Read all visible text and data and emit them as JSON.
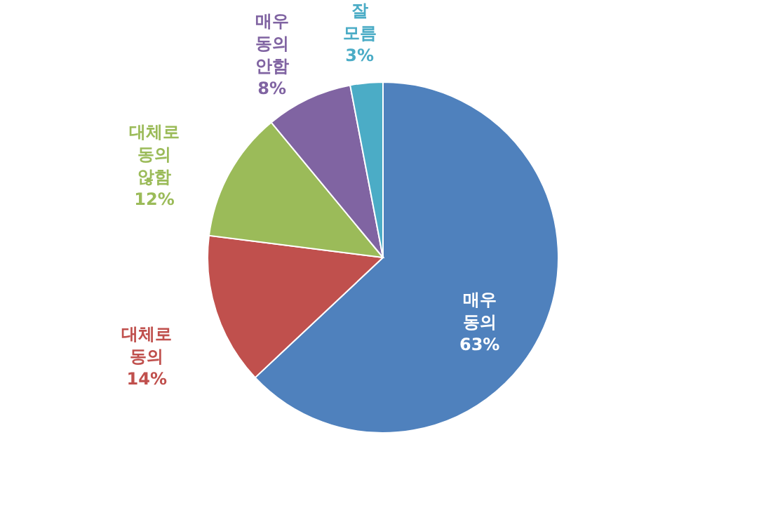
{
  "chart_data": {
    "type": "pie",
    "categories": [
      "매우 동의",
      "대체로 동의",
      "대체로 동의 않함",
      "매우 동의 안함",
      "잘 모름"
    ],
    "values": [
      63,
      14,
      12,
      8,
      3
    ],
    "colors": [
      "#4f81bd",
      "#c0504d",
      "#9bbb59",
      "#8064a2",
      "#4bacc6"
    ],
    "value_labels": [
      "63%",
      "14%",
      "12%",
      "8%",
      "3%"
    ]
  }
}
